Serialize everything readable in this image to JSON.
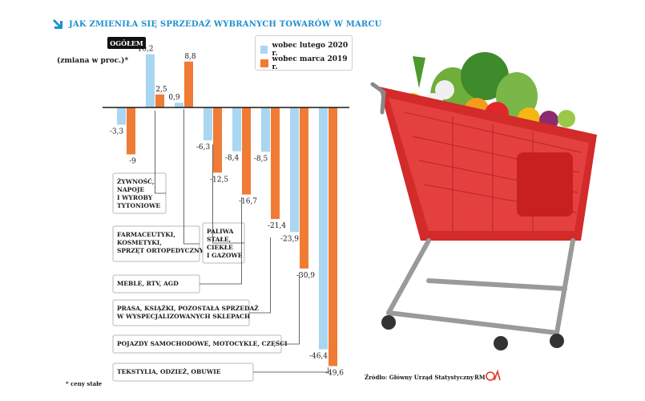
{
  "title": "JAK ZMIENIŁA SIĘ SPRZEDAŻ WYBRANYCH TOWARÓW W MARCU",
  "badge": "OGÓŁEM",
  "unit_label": "(zmiana w proc.)*",
  "footnote": "* ceny stałe",
  "source": "Źródło: Główny Urząd Statystyczny",
  "credit": "RM",
  "colors": {
    "series1": "#a9d6f0",
    "series2": "#f07b34",
    "title": "#1f8fd1",
    "logo": "#e03a2c"
  },
  "chart_data": {
    "type": "bar",
    "ylabel": "(zmiana w proc.)*",
    "legend_position": "top-right",
    "grid": false,
    "ylim": [
      -50,
      11
    ],
    "categories": [
      "OGÓŁEM",
      "ŻYWNOŚĆ, NAPOJE I WYROBY TYTONIOWE",
      "FARMACEUTYKI, KOSMETYKI, SPRZĘT ORTOPEDYCZNY",
      "PALIWA STAŁE, CIEKŁE I GAZOWE",
      "MEBLE, RTV, AGD",
      "PRASA, KSIĄŻKI, POZOSTAŁA SPRZEDAŻ W WYSPECJALIZOWANYCH SKLEPACH",
      "POJAZDY SAMOCHODOWE, MOTOCYKLE, CZĘŚCI",
      "TEKSTYLIA, ODZIEŻ, OBUWIE"
    ],
    "series": [
      {
        "name": "wobec lutego 2020 r.",
        "values": [
          -3.3,
          10.2,
          0.9,
          -6.3,
          -8.4,
          -8.5,
          -23.9,
          -46.4
        ]
      },
      {
        "name": "wobec marca 2019 r.",
        "values": [
          -9.0,
          2.5,
          8.8,
          -12.5,
          -16.7,
          -21.4,
          -30.9,
          -49.6
        ]
      }
    ],
    "category_boxes": [
      [
        "ŻYWNOŚĆ,",
        "NAPOJE",
        "I WYROBY",
        "TYTONIOWE"
      ],
      [
        "FARMACEUTYKI,",
        "KOSMETYKI,",
        "SPRZĘT ORTOPEDYCZNY"
      ],
      [
        "PALIWA",
        "STAŁE,",
        "CIEKŁE",
        "I GAZOWE"
      ],
      [
        "MEBLE, RTV, AGD"
      ],
      [
        "PRASA, KSIĄŻKI, POZOSTAŁA SPRZEDAŻ",
        "W WYSPECJALIZOWANYCH SKLEPACH"
      ],
      [
        "POJAZDY SAMOCHODOWE, MOTOCYKLE, CZĘŚCI"
      ],
      [
        "TEKSTYLIA, ODZIEŻ, OBUWIE"
      ]
    ]
  }
}
